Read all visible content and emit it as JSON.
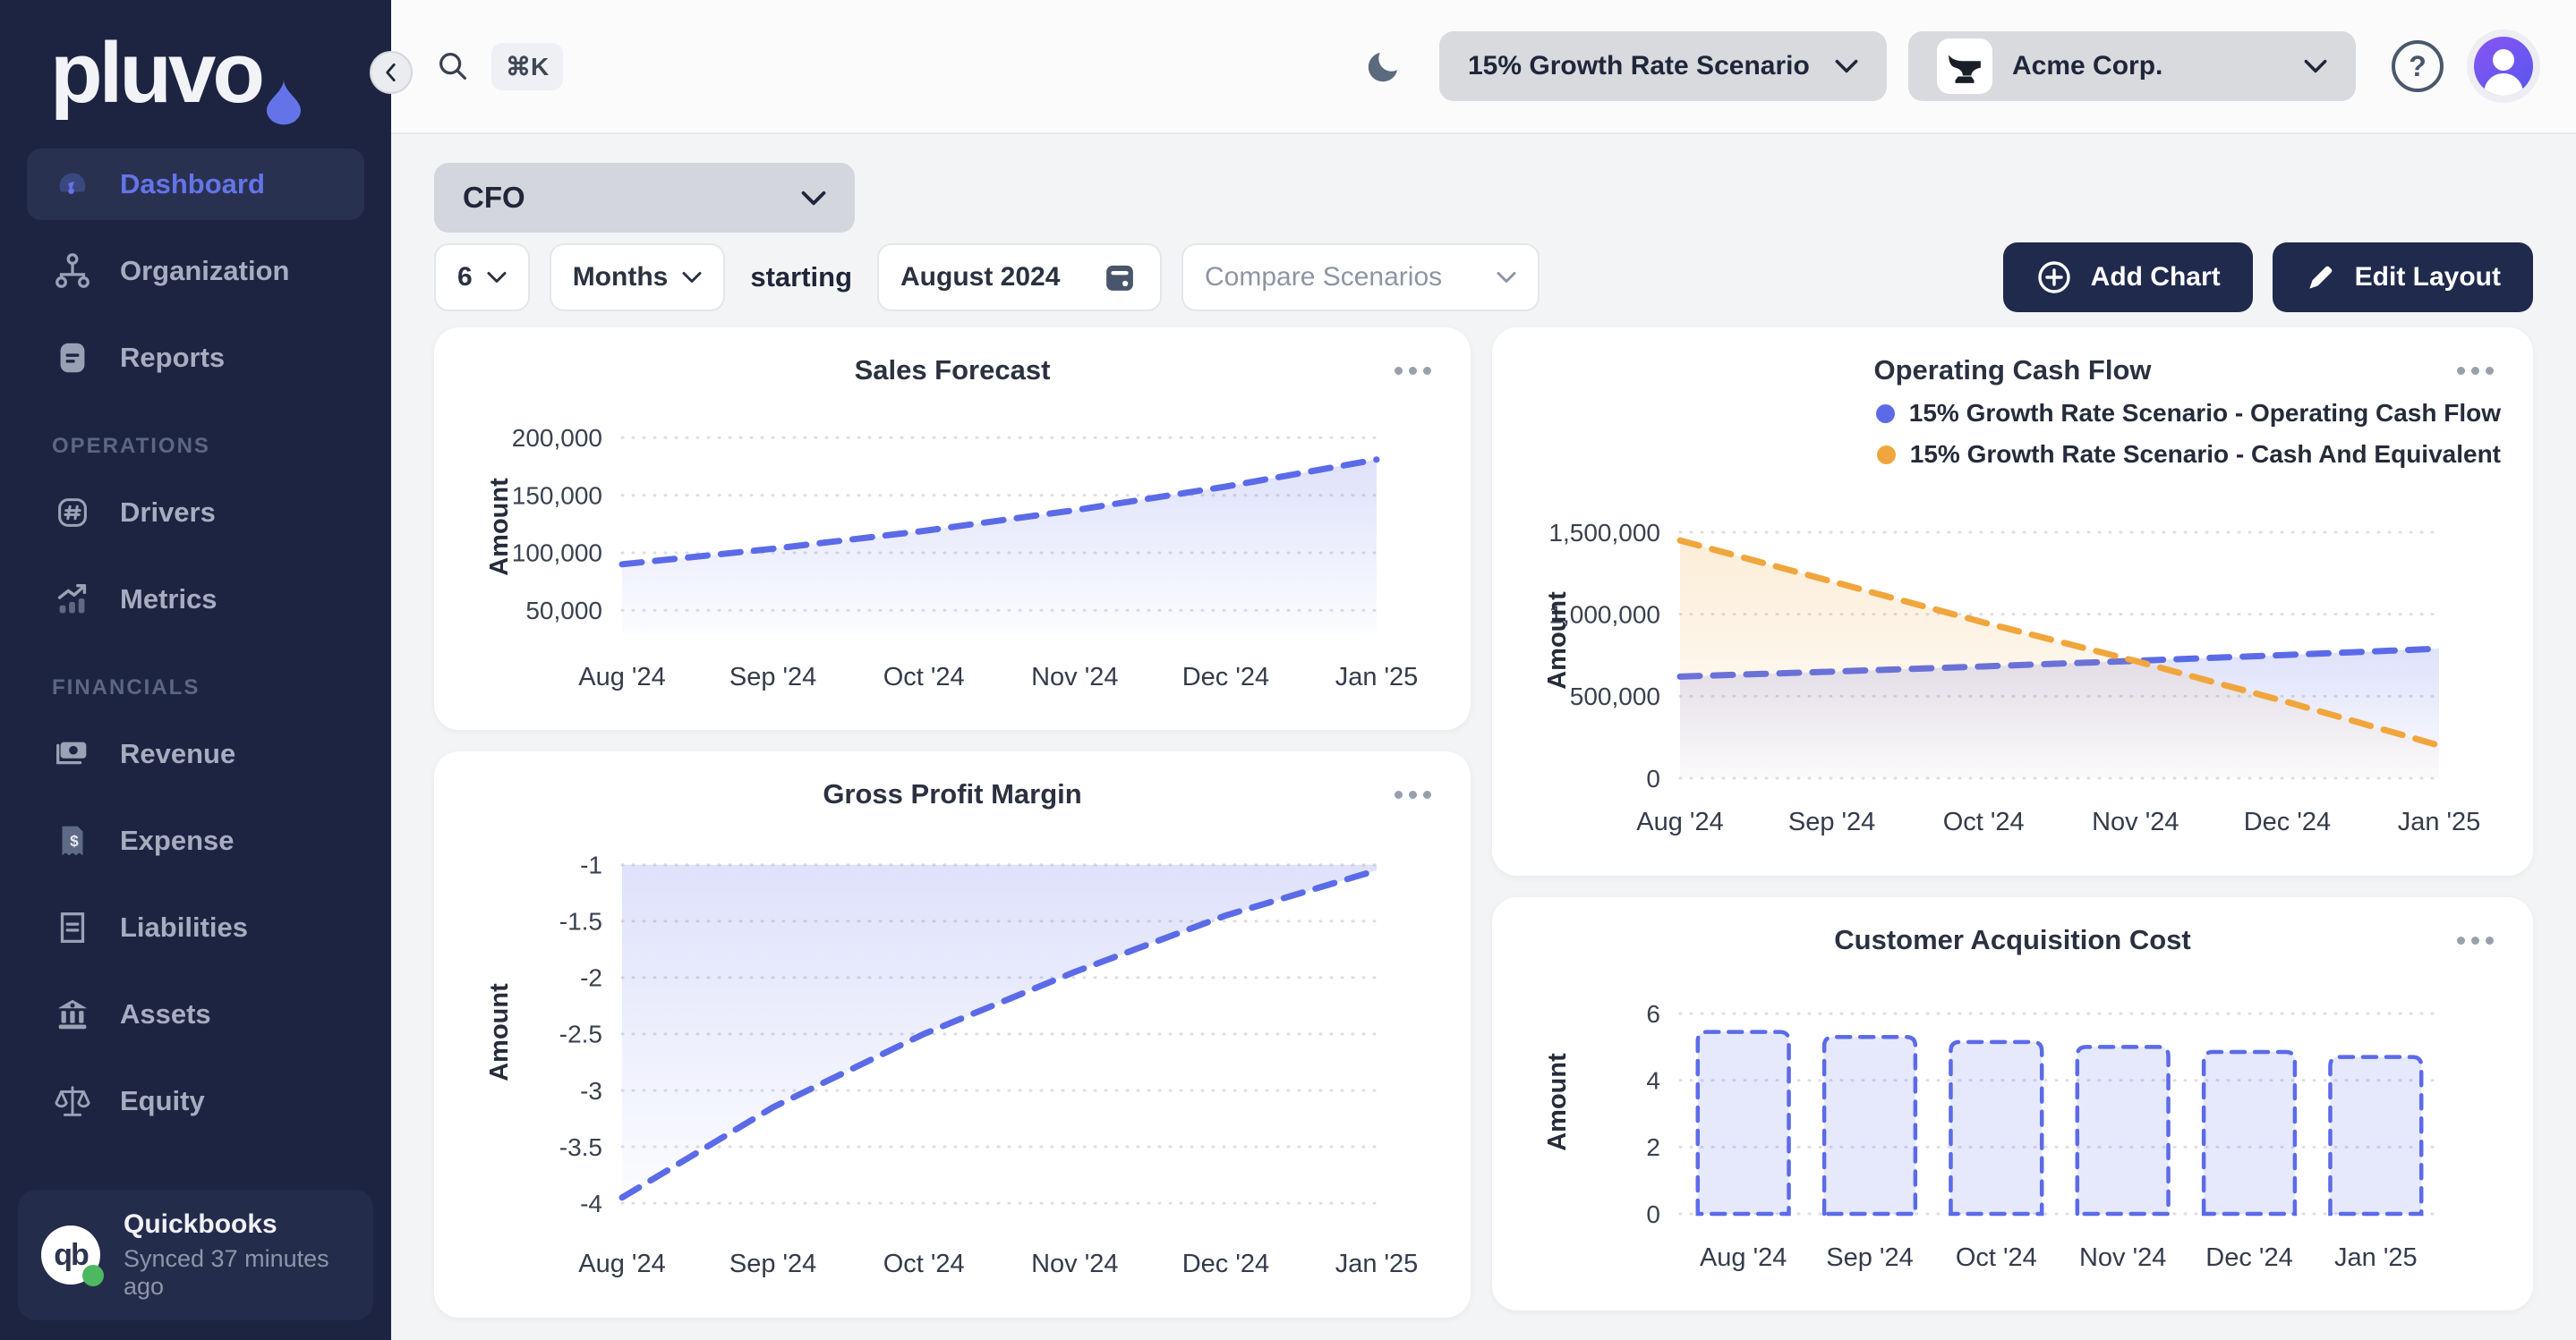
{
  "sidebar": {
    "logo_text": "pluvo",
    "items": [
      {
        "label": "Dashboard"
      },
      {
        "label": "Organization"
      },
      {
        "label": "Reports"
      }
    ],
    "sections": [
      {
        "label": "OPERATIONS",
        "items": [
          {
            "label": "Drivers"
          },
          {
            "label": "Metrics"
          }
        ]
      },
      {
        "label": "FINANCIALS",
        "items": [
          {
            "label": "Revenue"
          },
          {
            "label": "Expense"
          },
          {
            "label": "Liabilities"
          },
          {
            "label": "Assets"
          },
          {
            "label": "Equity"
          }
        ]
      }
    ],
    "integration": {
      "name": "Quickbooks",
      "status": "Synced 37 minutes ago"
    }
  },
  "topbar": {
    "shortcut": "⌘K",
    "scenario_selected": "15% Growth Rate Scenario",
    "company_selected": "Acme Corp.",
    "help_label": "?"
  },
  "filters": {
    "role": "CFO",
    "count": "6",
    "unit": "Months",
    "starting_label": "starting",
    "date": "August 2024",
    "compare_placeholder": "Compare Scenarios"
  },
  "actions": {
    "add_chart": "Add Chart",
    "edit_layout": "Edit Layout"
  },
  "colors": {
    "accent_blue": "#5b6be8",
    "accent_orange": "#f0a63c",
    "sidebar_bg": "#1d2442",
    "navy_button": "#1f2a4d",
    "sync_green": "#4cb860"
  },
  "chart_data": [
    {
      "id": "sales-forecast",
      "type": "line",
      "title": "Sales Forecast",
      "ylabel": "Amount",
      "x": [
        "Aug '24",
        "Sep '24",
        "Oct '24",
        "Nov '24",
        "Dec '24",
        "Jan '25"
      ],
      "yticks": [
        200000,
        150000,
        100000,
        50000
      ],
      "ylim": [
        30000,
        215000
      ],
      "series": [
        {
          "name": "Sales Forecast",
          "color": "#5b6be8",
          "fill": "below",
          "values": [
            90000,
            103500,
            119000,
            137000,
            157500,
            181000
          ]
        }
      ]
    },
    {
      "id": "operating-cash-flow",
      "type": "line",
      "title": "Operating Cash Flow",
      "ylabel": "Amount",
      "x": [
        "Aug '24",
        "Sep '24",
        "Oct '24",
        "Nov '24",
        "Dec '24",
        "Jan '25"
      ],
      "yticks": [
        1500000,
        1000000,
        500000,
        0
      ],
      "ylim": [
        0,
        1680000
      ],
      "series": [
        {
          "name": "15% Growth Rate Scenario - Operating Cash Flow",
          "color": "#5b6be8",
          "fill": "below",
          "values": [
            620000,
            650000,
            682000,
            716000,
            752000,
            790000
          ]
        },
        {
          "name": "15% Growth Rate Scenario - Cash And Equivalent",
          "color": "#f0a63c",
          "fill": "below",
          "values": [
            1450000,
            1200000,
            950000,
            715000,
            465000,
            200000
          ]
        }
      ]
    },
    {
      "id": "gross-profit-margin",
      "type": "line",
      "title": "Gross Profit Margin",
      "ylabel": "Amount",
      "x": [
        "Aug '24",
        "Sep '24",
        "Oct '24",
        "Nov '24",
        "Dec '24",
        "Jan '25"
      ],
      "yticks": [
        -1,
        -1.5,
        -2,
        -2.5,
        -3,
        -3.5,
        -4
      ],
      "ylim": [
        -4.15,
        -0.82
      ],
      "series": [
        {
          "name": "Gross Profit Margin",
          "color": "#5b6be8",
          "fill": "cap",
          "cap": -1,
          "values": [
            -3.95,
            -3.15,
            -2.5,
            -1.95,
            -1.45,
            -1.05
          ]
        }
      ]
    },
    {
      "id": "customer-acquisition-cost",
      "type": "bar",
      "title": "Customer Acquisition Cost",
      "ylabel": "Amount",
      "x": [
        "Aug '24",
        "Sep '24",
        "Oct '24",
        "Nov '24",
        "Dec '24",
        "Jan '25"
      ],
      "yticks": [
        6,
        4,
        2,
        0
      ],
      "ylim": [
        0,
        6.7
      ],
      "series": [
        {
          "name": "Customer Acquisition Cost",
          "color": "#5b6be8",
          "fill_color": "rgba(99,115,232,0.16)",
          "values": [
            5.45,
            5.3,
            5.15,
            5.0,
            4.85,
            4.7
          ]
        }
      ]
    }
  ]
}
